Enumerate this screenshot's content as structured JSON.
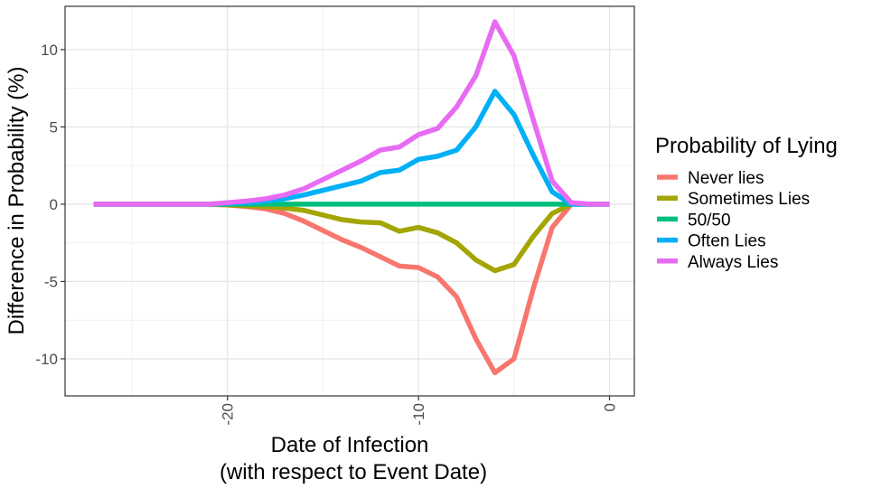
{
  "chart_data": {
    "type": "line",
    "xlabel": "Date of Infection",
    "xlabel_sub": "(with respect to Event Date)",
    "ylabel": "Difference in Probability (%)",
    "xlim": [
      -28.5,
      1.3
    ],
    "ylim": [
      -12.4,
      12.8
    ],
    "x_ticks": [
      -20,
      -10,
      0
    ],
    "x_tick_labels": [
      "-20",
      "-10",
      "0"
    ],
    "y_ticks": [
      10,
      5,
      0,
      -5,
      -10
    ],
    "y_tick_labels": [
      "10",
      "5",
      "0",
      "-5",
      "-10"
    ],
    "grid": true,
    "legend": {
      "title": "Probability of Lying",
      "position": "right"
    },
    "x": [
      -27,
      -26,
      -25,
      -24,
      -23,
      -22,
      -21,
      -20,
      -19,
      -18,
      -17,
      -16,
      -15,
      -14,
      -13,
      -12,
      -11,
      -10,
      -9,
      -8,
      -7,
      -6,
      -5,
      -4,
      -3,
      -2,
      -1,
      0
    ],
    "series": [
      {
        "name": "Never lies",
        "color": "#F8766D",
        "values": [
          0,
          0,
          0,
          0,
          0,
          0,
          0,
          -0.05,
          -0.15,
          -0.3,
          -0.6,
          -1.1,
          -1.7,
          -2.3,
          -2.8,
          -3.4,
          -4.0,
          -4.1,
          -4.7,
          -6.0,
          -8.7,
          -10.9,
          -10.0,
          -5.5,
          -1.5,
          0,
          0,
          0
        ]
      },
      {
        "name": "Sometimes Lies",
        "color": "#A3A500",
        "values": [
          0,
          0,
          0,
          0,
          0,
          0,
          0,
          -0.05,
          -0.1,
          -0.15,
          -0.25,
          -0.4,
          -0.7,
          -1.0,
          -1.15,
          -1.2,
          -1.75,
          -1.5,
          -1.85,
          -2.5,
          -3.6,
          -4.3,
          -3.9,
          -2.1,
          -0.6,
          0,
          0,
          0
        ]
      },
      {
        "name": "50/50",
        "color": "#00BF7D",
        "values": [
          0,
          0,
          0,
          0,
          0,
          0,
          0,
          0,
          0,
          0,
          0,
          0,
          0,
          0,
          0,
          0,
          0,
          0,
          0,
          0,
          0,
          0,
          0,
          0,
          0,
          0,
          0,
          0
        ]
      },
      {
        "name": "Often Lies",
        "color": "#00B0F6",
        "values": [
          0,
          0,
          0,
          0,
          0,
          0,
          0,
          0.05,
          0.1,
          0.2,
          0.35,
          0.6,
          0.9,
          1.2,
          1.5,
          2.05,
          2.2,
          2.9,
          3.1,
          3.5,
          5.0,
          7.3,
          5.8,
          3.2,
          0.8,
          0,
          0,
          0
        ]
      },
      {
        "name": "Always Lies",
        "color": "#E76BF3",
        "values": [
          0,
          0,
          0,
          0,
          0,
          0,
          0,
          0.1,
          0.2,
          0.35,
          0.6,
          1.0,
          1.6,
          2.2,
          2.8,
          3.5,
          3.7,
          4.5,
          4.9,
          6.3,
          8.3,
          11.8,
          9.6,
          5.5,
          1.5,
          0.1,
          0,
          0
        ]
      }
    ]
  }
}
